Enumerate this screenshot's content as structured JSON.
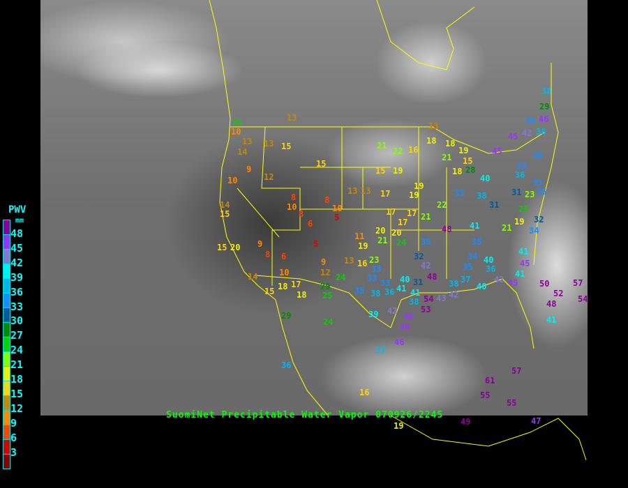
{
  "caption": "SuomiNet Precipitable Water Vapor 070926/2245",
  "legend": {
    "title": "PWV",
    "unit": "mm",
    "tick_labels": [
      "48",
      "45",
      "42",
      "39",
      "36",
      "33",
      "30",
      "27",
      "24",
      "21",
      "18",
      "15",
      "12",
      "9",
      "6",
      "3"
    ],
    "colors": [
      "#8b0096",
      "#9933ff",
      "#8478d0",
      "#00f0f0",
      "#00b8ec",
      "#1a8cff",
      "#005a9c",
      "#008c00",
      "#00d400",
      "#88ff00",
      "#f0f000",
      "#ffd400",
      "#c88800",
      "#ff8800",
      "#ff4400",
      "#d80000",
      "#8b0000"
    ]
  },
  "stations": [
    "24",
    "10",
    "14",
    "13",
    "13",
    "15",
    "13",
    "9",
    "12",
    "10",
    "15",
    "21",
    "22",
    "16",
    "13",
    "18",
    "15",
    "19",
    "19",
    "19",
    "17",
    "13",
    "13",
    "8",
    "10",
    "8",
    "6",
    "8",
    "10",
    "5",
    "14",
    "15",
    "17",
    "17",
    "17",
    "21",
    "22",
    "48",
    "41",
    "21",
    "19",
    "34",
    "32",
    "25",
    "31",
    "31",
    "35",
    "33",
    "33",
    "38",
    "40",
    "38",
    "29",
    "34",
    "46",
    "42",
    "38",
    "45",
    "45",
    "34",
    "36",
    "33",
    "23",
    "11",
    "19",
    "20",
    "20",
    "24",
    "35",
    "21",
    "5",
    "9",
    "8",
    "6",
    "15",
    "20",
    "9",
    "12",
    "13",
    "16",
    "23",
    "33",
    "33",
    "33",
    "40",
    "31",
    "48",
    "42",
    "32",
    "35",
    "35",
    "34",
    "40",
    "36",
    "37",
    "40",
    "42",
    "41",
    "41",
    "45",
    "45",
    "10",
    "14",
    "18",
    "17",
    "18",
    "15",
    "29",
    "25",
    "24",
    "35",
    "38",
    "36",
    "41",
    "41",
    "38",
    "54",
    "53",
    "43",
    "42",
    "38",
    "42",
    "39",
    "46",
    "46",
    "46",
    "37",
    "24",
    "29",
    "36",
    "16",
    "19",
    "49",
    "47",
    "61",
    "57",
    "55",
    "55",
    "50",
    "57",
    "48",
    "52",
    "54",
    "41",
    "18",
    "19",
    "15",
    "18",
    "28",
    "21"
  ]
}
